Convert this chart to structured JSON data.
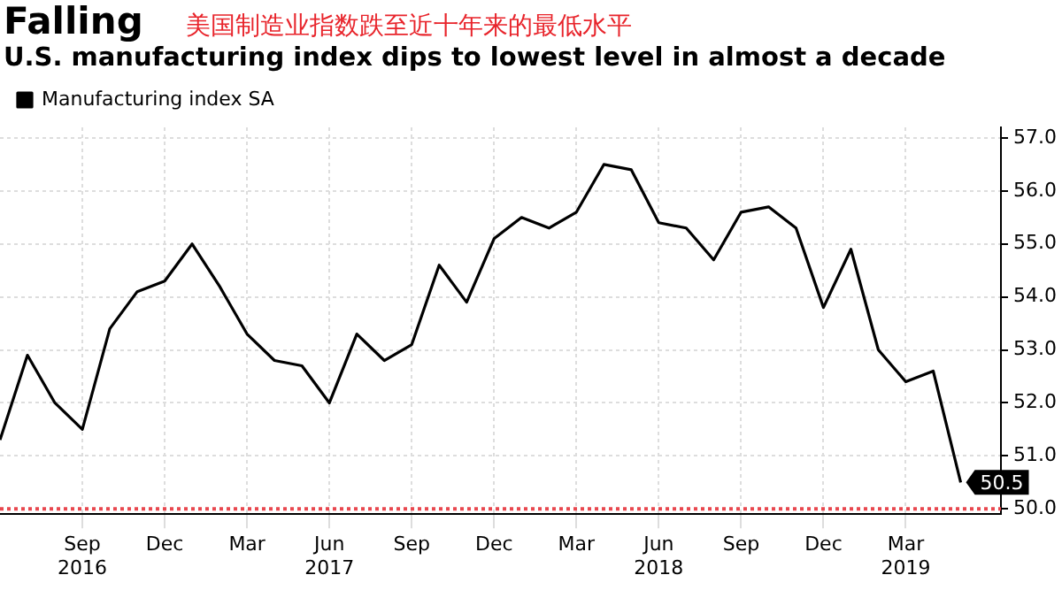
{
  "chart_data": {
    "type": "line",
    "title": "Falling",
    "subtitle": "U.S. manufacturing index dips to lowest level in almost a decade",
    "annotations": [
      "美国制造业指数跌至近十年来的最低水平"
    ],
    "x": [
      "2016-06",
      "2016-07",
      "2016-08",
      "2016-09",
      "2016-10",
      "2016-11",
      "2016-12",
      "2017-01",
      "2017-02",
      "2017-03",
      "2017-04",
      "2017-05",
      "2017-06",
      "2017-07",
      "2017-08",
      "2017-09",
      "2017-10",
      "2017-11",
      "2017-12",
      "2018-01",
      "2018-02",
      "2018-03",
      "2018-04",
      "2018-05",
      "2018-06",
      "2018-07",
      "2018-08",
      "2018-09",
      "2018-10",
      "2018-11",
      "2018-12",
      "2019-01",
      "2019-02",
      "2019-03",
      "2019-04",
      "2019-05"
    ],
    "series": [
      {
        "name": "Manufacturing index SA",
        "color": "#000000",
        "values": [
          51.3,
          52.9,
          52.0,
          51.5,
          53.4,
          54.1,
          54.3,
          55.0,
          54.2,
          53.3,
          52.8,
          52.7,
          52.0,
          53.3,
          52.8,
          53.1,
          54.6,
          53.9,
          55.1,
          55.5,
          55.3,
          55.6,
          56.5,
          56.4,
          55.4,
          55.3,
          54.7,
          55.6,
          55.7,
          55.3,
          53.8,
          54.9,
          53.0,
          52.4,
          52.6,
          50.5
        ],
        "value_labels": [
          null,
          null,
          null,
          null,
          null,
          null,
          null,
          null,
          null,
          null,
          null,
          null,
          null,
          null,
          null,
          null,
          null,
          null,
          null,
          null,
          null,
          null,
          null,
          null,
          null,
          null,
          null,
          null,
          null,
          null,
          null,
          null,
          null,
          null,
          null,
          "50.5"
        ]
      }
    ],
    "xlim": [
      "2016-06",
      "2019-06-15"
    ],
    "xticks": [
      {
        "value": "2016-09",
        "label": "Sep\n2016"
      },
      {
        "value": "2016-12",
        "label": "Dec"
      },
      {
        "value": "2017-03",
        "label": "Mar"
      },
      {
        "value": "2017-06",
        "label": "Jun\n2017"
      },
      {
        "value": "2017-09",
        "label": "Sep"
      },
      {
        "value": "2017-12",
        "label": "Dec"
      },
      {
        "value": "2018-03",
        "label": "Mar"
      },
      {
        "value": "2018-06",
        "label": "Jun\n2018"
      },
      {
        "value": "2018-09",
        "label": "Sep"
      },
      {
        "value": "2018-12",
        "label": "Dec"
      },
      {
        "value": "2019-03",
        "label": "Mar\n2019"
      }
    ],
    "ylim": [
      49.9,
      57.2
    ],
    "yticks": [
      {
        "value": 50,
        "label": "50.0"
      },
      {
        "value": 51,
        "label": "51.0"
      },
      {
        "value": 52,
        "label": "52.0"
      },
      {
        "value": 53,
        "label": "53.0"
      },
      {
        "value": 54,
        "label": "54.0"
      },
      {
        "value": 55,
        "label": "55.0"
      },
      {
        "value": 56,
        "label": "56.0"
      },
      {
        "value": 57,
        "label": "57.0"
      }
    ],
    "ref_lines": [
      {
        "axis": "y",
        "value": 50,
        "color": "#e8484f",
        "line_style": "dotted"
      }
    ],
    "grid": true,
    "legend": "top left",
    "marker": "none",
    "line_style": "solid"
  }
}
